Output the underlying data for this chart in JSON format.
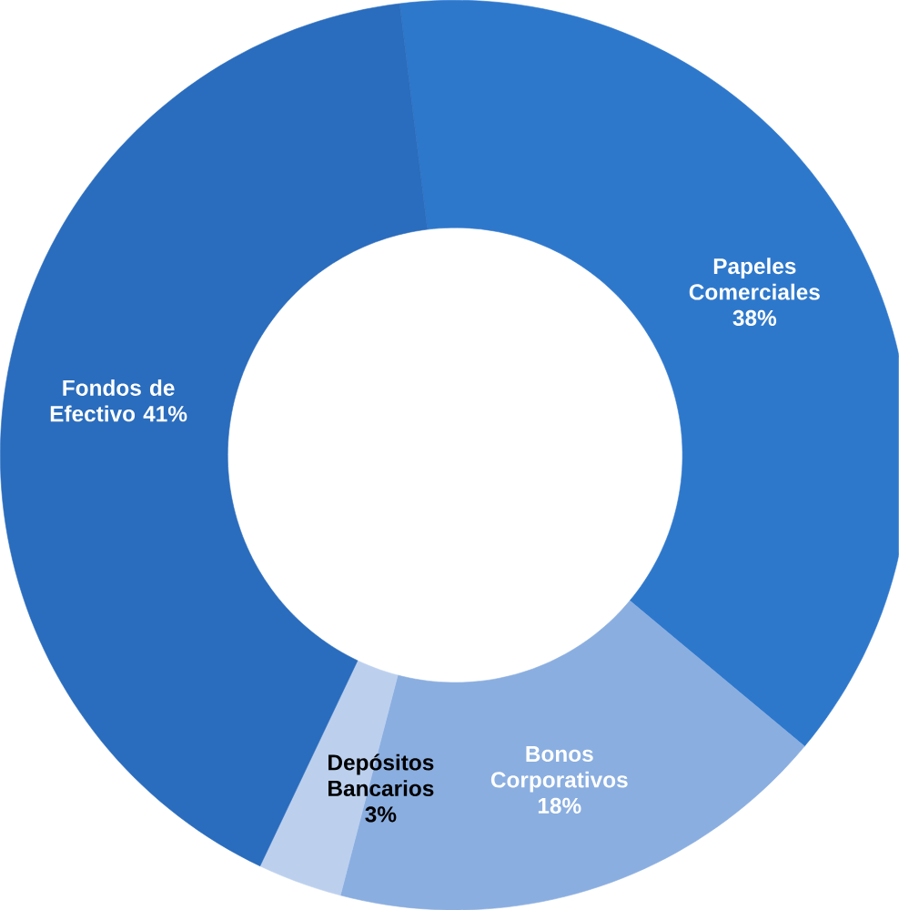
{
  "chart_data": {
    "type": "donut",
    "categories": [
      "Papeles Comerciales",
      "Bonos Corporativos",
      "Depósitos Bancarios",
      "Fondos de Efectivo"
    ],
    "values": [
      38,
      18,
      3,
      41
    ],
    "value_labels": [
      "38%",
      "18%",
      "3%",
      "41%"
    ],
    "colors": [
      "#2e78cc",
      "#8aaee0",
      "#bcd0ee",
      "#2a6cbd"
    ]
  }
}
